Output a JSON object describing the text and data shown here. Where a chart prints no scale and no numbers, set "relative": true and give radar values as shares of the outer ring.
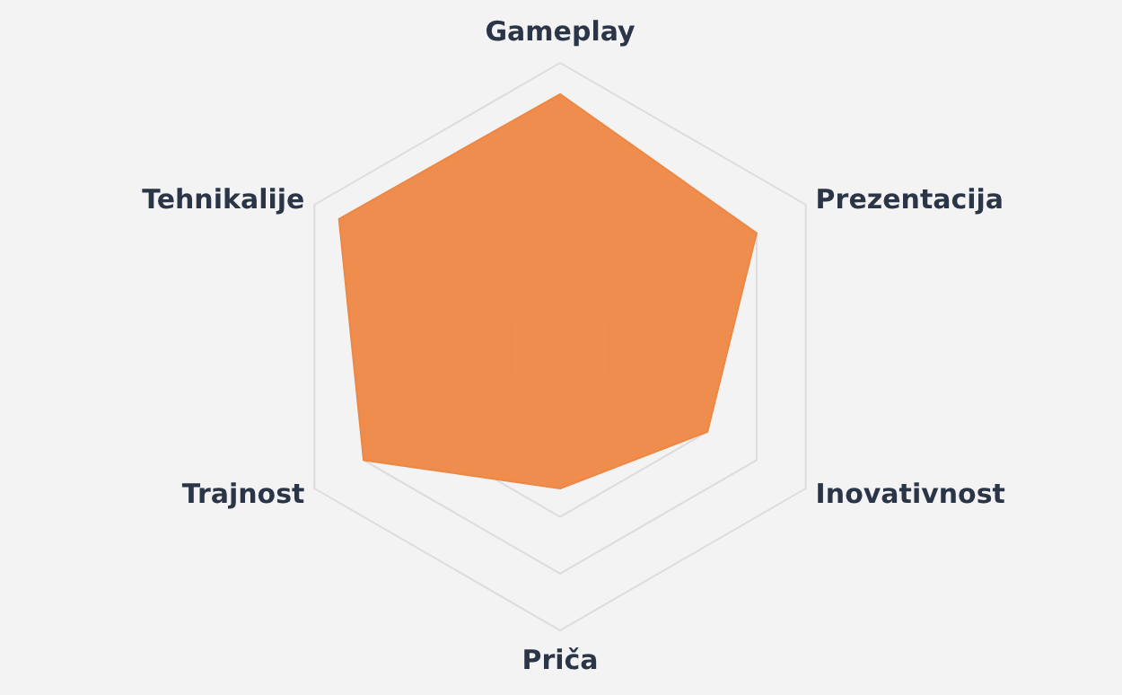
{
  "chart_data": {
    "type": "radar",
    "relative": true,
    "grid": true,
    "categories": [
      "Gameplay",
      "Prezentacija",
      "Inovativnost",
      "Priča",
      "Trajnost",
      "Tehnikalije"
    ],
    "series": [
      {
        "color": "#ee8744",
        "values": [
          0.89,
          0.8,
          0.6,
          0.5,
          0.8,
          0.9
        ]
      }
    ]
  }
}
